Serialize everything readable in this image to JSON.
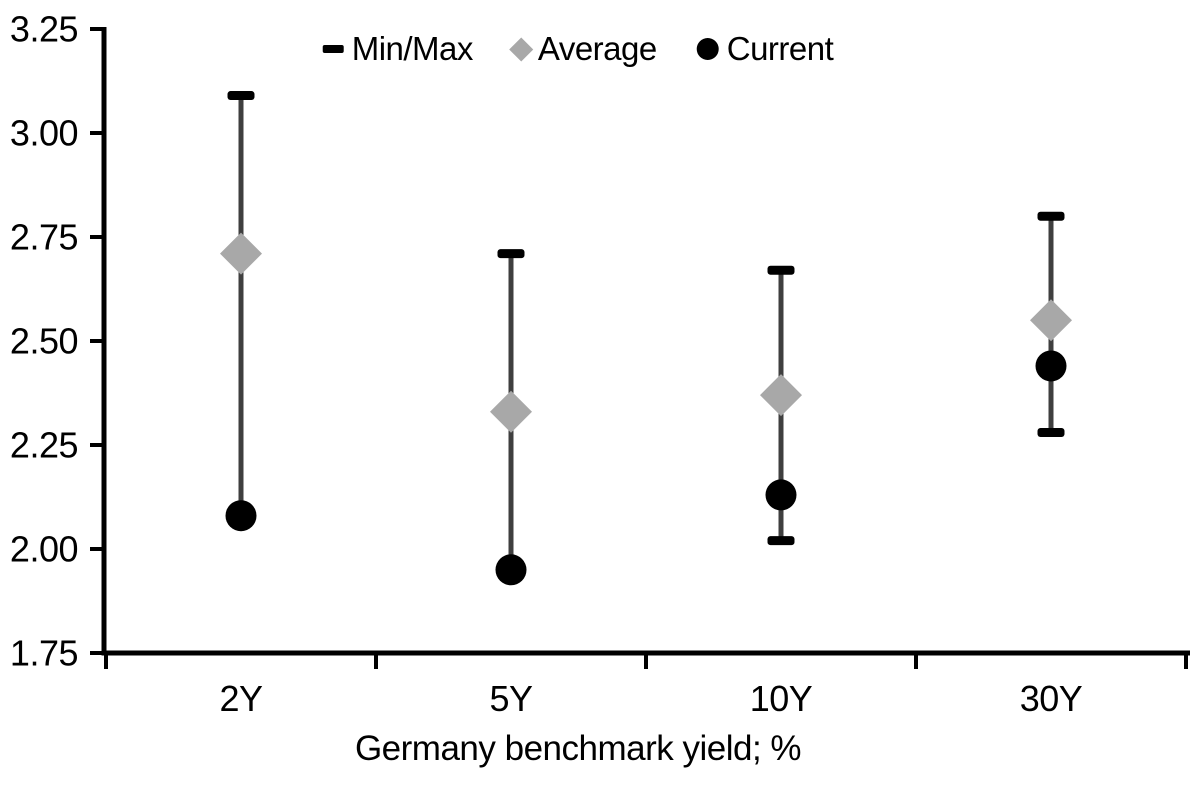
{
  "chart_data": {
    "type": "scatter",
    "subtype": "range-min-max-average-current",
    "title": "",
    "xlabel": "Germany benchmark yield; %",
    "ylabel": "",
    "categories": [
      "2Y",
      "5Y",
      "10Y",
      "30Y"
    ],
    "ylim": [
      1.75,
      3.25
    ],
    "ytick_labels": [
      "3.25",
      "3.00",
      "2.75",
      "2.50",
      "2.25",
      "2.00",
      "1.75"
    ],
    "grid": false,
    "legend_position": "top-center",
    "series": [
      {
        "name": "Min/Max",
        "role": "range",
        "marker": "dash",
        "min": [
          2.08,
          1.95,
          2.02,
          2.28
        ],
        "max": [
          3.09,
          2.71,
          2.67,
          2.8
        ],
        "line_color": "#3f3f3f",
        "cap_color": "#000000"
      },
      {
        "name": "Average",
        "role": "point",
        "marker": "diamond",
        "color": "#a8a8a8",
        "values": [
          2.71,
          2.33,
          2.37,
          2.55
        ]
      },
      {
        "name": "Current",
        "role": "point",
        "marker": "circle",
        "color": "#000000",
        "values": [
          2.08,
          1.95,
          2.13,
          2.44
        ]
      }
    ]
  },
  "colors": {
    "background": "#ffffff",
    "text": "#000000",
    "axis": "#000000"
  }
}
